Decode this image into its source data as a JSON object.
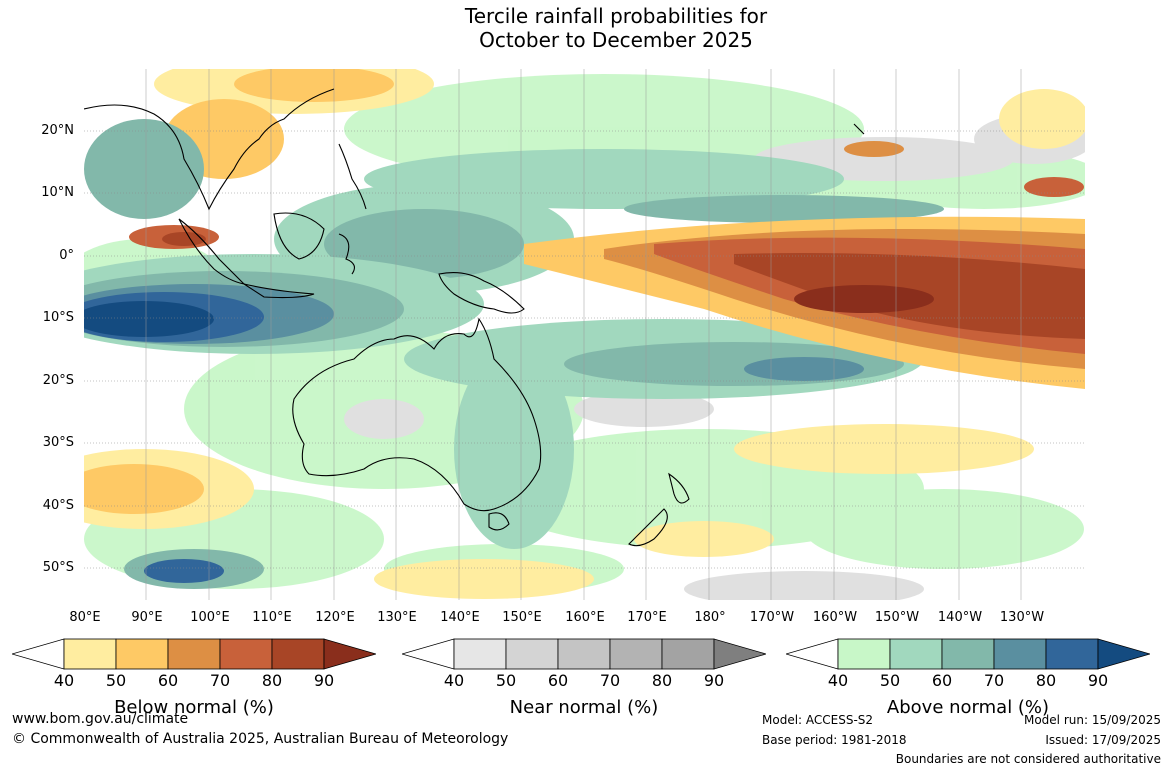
{
  "title": {
    "line1": "Tercile rainfall probabilities for",
    "line2": "October to December 2025"
  },
  "map": {
    "lat_labels": [
      "20°N",
      "10°N",
      "0°",
      "10°S",
      "20°S",
      "30°S",
      "40°S",
      "50°S"
    ],
    "lon_labels": [
      "80°E",
      "90°E",
      "100°E",
      "110°E",
      "120°E",
      "130°E",
      "140°E",
      "150°E",
      "160°E",
      "170°E",
      "180°",
      "170°W",
      "160°W",
      "150°W",
      "140°W",
      "130°W"
    ]
  },
  "legend": {
    "ticks": [
      "40",
      "50",
      "60",
      "70",
      "80",
      "90"
    ],
    "below": {
      "title": "Below normal (%)",
      "colors": [
        "#ffffff",
        "#ffeda0",
        "#fec965",
        "#dd8f44",
        "#c8613a",
        "#a84526",
        "#8a2e1c"
      ]
    },
    "near": {
      "title": "Near normal (%)",
      "colors": [
        "#ffffff",
        "#e6e6e6",
        "#d4d4d4",
        "#c4c4c4",
        "#b3b3b3",
        "#a3a3a3",
        "#7f7f7f"
      ]
    },
    "above": {
      "title": "Above normal (%)",
      "colors": [
        "#ffffff",
        "#c8f7c8",
        "#a1d8be",
        "#82b8aa",
        "#5a8fa0",
        "#31669a",
        "#144b80"
      ]
    }
  },
  "footer": {
    "website": "www.bom.gov.au/climate",
    "copyright": "© Commonwealth of Australia 2025, Australian Bureau of Meteorology",
    "model": "Model: ACCESS-S2",
    "base_period": "Base period: 1981-2018",
    "model_run": "Model run: 15/09/2025",
    "issued": "Issued: 17/09/2025",
    "disclaimer": "Boundaries are not considered authoritative"
  }
}
